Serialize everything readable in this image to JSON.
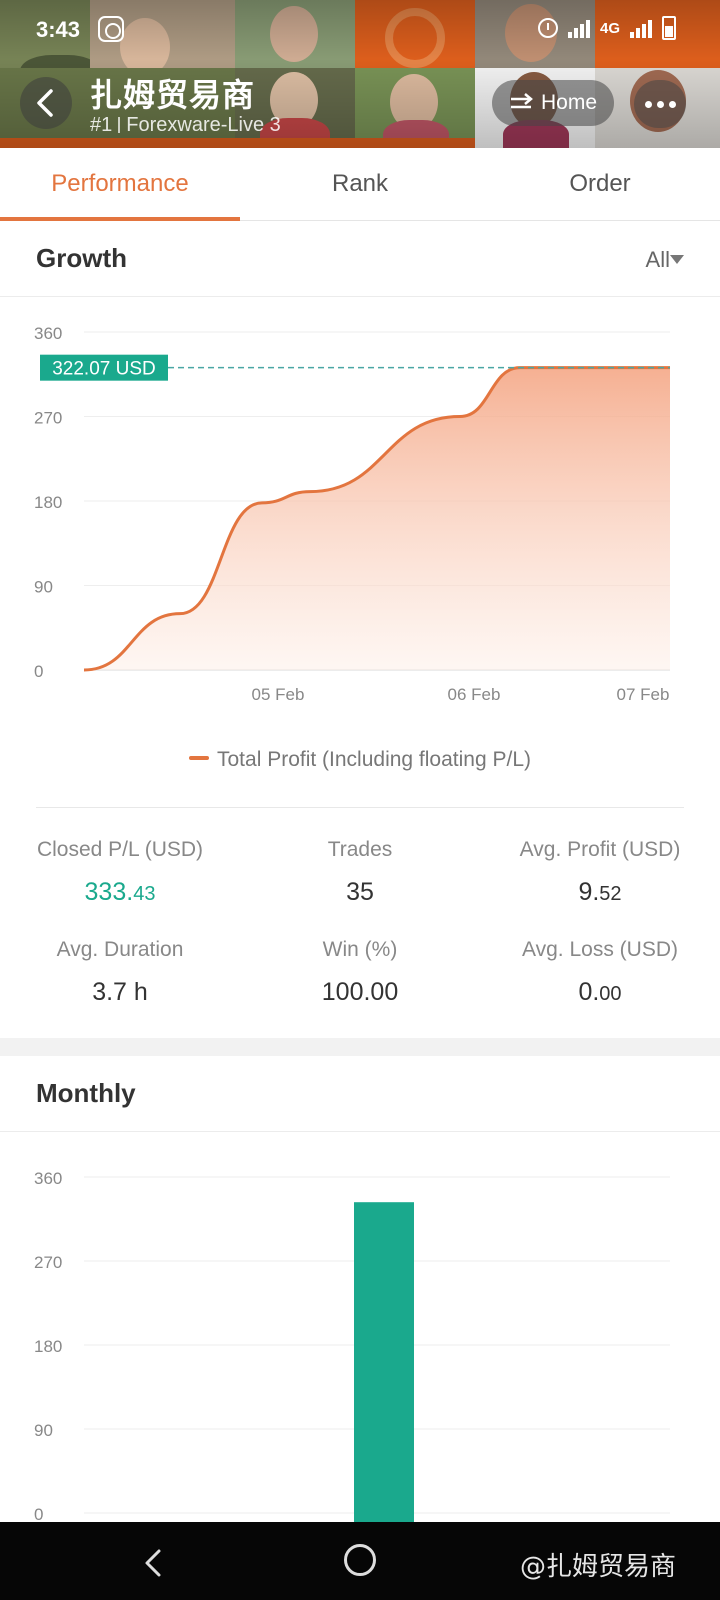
{
  "status_bar": {
    "time": "3:43",
    "network": "4G",
    "icons": [
      "app-icon",
      "alarm-icon",
      "signal-icon",
      "battery-icon"
    ]
  },
  "header": {
    "trader_name": "扎姆贸易商",
    "rank": "#1",
    "server": "Forexware-Live 3",
    "home_label": "Home",
    "accent": "#e8631e"
  },
  "tabs": [
    {
      "label": "Performance",
      "active": true
    },
    {
      "label": "Rank",
      "active": false
    },
    {
      "label": "Order",
      "active": false
    }
  ],
  "growth": {
    "title": "Growth",
    "filter": "All",
    "current_value_label": "322.07 USD",
    "legend": "Total Profit (Including floating P/L)",
    "line_color": "#e3753f",
    "badge_color": "#1aa98d"
  },
  "stats": {
    "closed_pl": {
      "label": "Closed P/L (USD)",
      "int": "333.",
      "dec": "43"
    },
    "trades": {
      "label": "Trades",
      "value": "35"
    },
    "avg_profit": {
      "label": "Avg. Profit (USD)",
      "int": "9.",
      "dec": "52"
    },
    "avg_duration": {
      "label": "Avg. Duration",
      "value": "3.7 h"
    },
    "win": {
      "label": "Win (%)",
      "value": "100.00"
    },
    "avg_loss": {
      "label": "Avg. Loss (USD)",
      "int": "0.",
      "dec": "00"
    }
  },
  "monthly": {
    "title": "Monthly"
  },
  "chart_data": [
    {
      "type": "line",
      "x": [
        "04 Feb",
        "04 Feb",
        "05 Feb",
        "05 Feb",
        "06 Feb",
        "06 Feb",
        "07 Feb"
      ],
      "tick_labels_x": [
        "05 Feb",
        "06 Feb",
        "07 Feb"
      ],
      "series": [
        {
          "name": "Total Profit (Including floating P/L)",
          "values": [
            0,
            60,
            178,
            190,
            270,
            322,
            322
          ]
        }
      ],
      "y_ticks": [
        0,
        90,
        180,
        270,
        360
      ],
      "ylim": [
        0,
        360
      ],
      "grid": true,
      "legend": "bottom",
      "annotation": "322.07 USD"
    },
    {
      "type": "bar",
      "categories": [
        ""
      ],
      "values": [
        333
      ],
      "y_ticks": [
        0,
        90,
        180,
        270,
        360
      ],
      "ylim": [
        0,
        360
      ],
      "grid": true,
      "color": "#1aa98d"
    }
  ],
  "system_nav": {
    "watermark": "@扎姆贸易商"
  }
}
